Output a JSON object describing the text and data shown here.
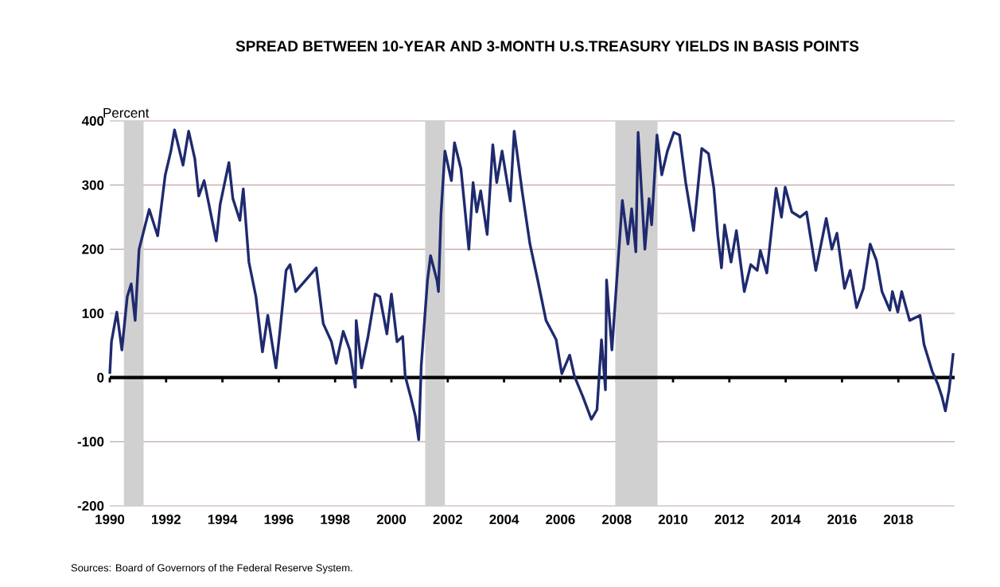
{
  "chart_data": {
    "type": "line",
    "title": "SPREAD BETWEEN 10-YEAR AND 3-MONTH U.S.TREASURY YIELDS IN BASIS POINTS",
    "ylabel": "Percent",
    "annotations": [
      "Sources: Board of Governors of the Federal Reserve System."
    ],
    "xlim": [
      1990,
      2020
    ],
    "xticks": [
      1990,
      1992,
      1994,
      1996,
      1998,
      2000,
      2002,
      2004,
      2006,
      2008,
      2010,
      2012,
      2014,
      2016,
      2018
    ],
    "ylim": [
      -200,
      400
    ],
    "yticks": [
      -200,
      -100,
      0,
      100,
      200,
      300,
      400
    ],
    "grid": "y",
    "line_style": "solid",
    "marker": "none",
    "ref_lines": [
      {
        "axis": "y",
        "value": 0,
        "color": "#000000"
      }
    ],
    "bands": [
      {
        "axis": "x",
        "from": 1990.5,
        "to": 1991.2,
        "color": "#d0d0d0"
      },
      {
        "axis": "x",
        "from": 2001.2,
        "to": 2001.9,
        "color": "#d0d0d0"
      },
      {
        "axis": "x",
        "from": 2007.95,
        "to": 2009.45,
        "color": "#d0d0d0"
      }
    ],
    "series": [
      {
        "color": "#1f2a6e",
        "x": [
          1990.0,
          1990.06,
          1990.25,
          1990.43,
          1990.62,
          1990.76,
          1990.9,
          1991.04,
          1991.4,
          1991.7,
          1991.97,
          1992.17,
          1992.3,
          1992.6,
          1992.8,
          1993.02,
          1993.16,
          1993.35,
          1993.78,
          1993.92,
          1994.23,
          1994.37,
          1994.62,
          1994.74,
          1994.94,
          1995.19,
          1995.42,
          1995.61,
          1995.9,
          1996.04,
          1996.26,
          1996.4,
          1996.6,
          1997.02,
          1997.33,
          1997.58,
          1997.87,
          1998.04,
          1998.29,
          1998.52,
          1998.72,
          1998.75,
          1998.94,
          1999.17,
          1999.42,
          1999.59,
          1999.84,
          2000.0,
          2000.2,
          2000.4,
          2000.49,
          2000.69,
          2000.85,
          2000.97,
          2001.06,
          2001.28,
          2001.39,
          2001.62,
          2001.67,
          2001.76,
          2001.9,
          2002.13,
          2002.24,
          2002.47,
          2002.75,
          2002.9,
          2003.03,
          2003.17,
          2003.4,
          2003.6,
          2003.74,
          2003.93,
          2004.22,
          2004.36,
          2004.64,
          2004.92,
          2005.2,
          2005.49,
          2005.85,
          2006.05,
          2006.33,
          2006.5,
          2006.8,
          2007.1,
          2007.3,
          2007.46,
          2007.6,
          2007.64,
          2007.83,
          2008.2,
          2008.4,
          2008.53,
          2008.68,
          2008.76,
          2009.0,
          2009.15,
          2009.24,
          2009.43,
          2009.6,
          2009.8,
          2010.03,
          2010.23,
          2010.45,
          2010.73,
          2011.02,
          2011.26,
          2011.45,
          2011.59,
          2011.72,
          2011.83,
          2012.06,
          2012.25,
          2012.53,
          2012.76,
          2012.99,
          2013.1,
          2013.33,
          2013.66,
          2013.85,
          2013.98,
          2014.22,
          2014.51,
          2014.74,
          2015.07,
          2015.44,
          2015.64,
          2015.82,
          2016.09,
          2016.29,
          2016.52,
          2016.76,
          2017.0,
          2017.22,
          2017.42,
          2017.7,
          2017.79,
          2017.98,
          2018.12,
          2018.4,
          2018.77,
          2018.91,
          2019.2,
          2019.4,
          2019.55,
          2019.67,
          2019.8,
          2019.95
        ],
        "values": [
          6,
          56,
          102,
          43,
          126,
          146,
          89,
          200,
          262,
          221,
          316,
          353,
          386,
          331,
          384,
          341,
          283,
          307,
          213,
          270,
          335,
          279,
          245,
          294,
          180,
          126,
          40,
          97,
          15,
          72,
          167,
          176,
          134,
          155,
          171,
          84,
          56,
          22,
          72,
          43,
          -15,
          89,
          15,
          64,
          130,
          126,
          68,
          130,
          56,
          64,
          2,
          -31,
          -60,
          -97,
          19,
          151,
          190,
          151,
          134,
          254,
          353,
          307,
          366,
          325,
          200,
          304,
          258,
          291,
          223,
          363,
          304,
          353,
          275,
          384,
          291,
          208,
          151,
          89,
          59,
          6,
          35,
          2,
          -30,
          -65,
          -50,
          59,
          -19,
          152,
          43,
          276,
          208,
          263,
          196,
          382,
          200,
          279,
          238,
          378,
          316,
          353,
          382,
          378,
          304,
          229,
          357,
          349,
          295,
          221,
          171,
          238,
          180,
          229,
          134,
          176,
          167,
          198,
          163,
          295,
          250,
          297,
          258,
          250,
          258,
          167,
          248,
          200,
          225,
          139,
          167,
          109,
          139,
          208,
          183,
          134,
          105,
          134,
          102,
          134,
          89,
          97,
          52,
          10,
          -10,
          -30,
          -52,
          -20,
          38
        ]
      }
    ]
  }
}
